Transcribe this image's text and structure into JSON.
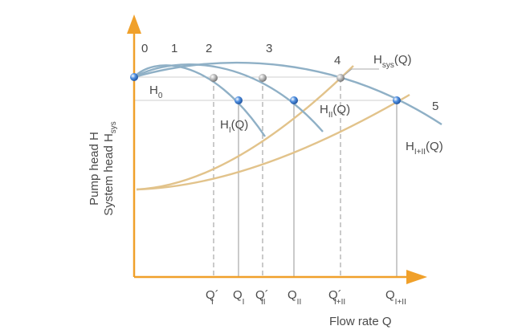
{
  "colors": {
    "axis": "#f0a02a",
    "pump_curve": "#8fb0c6",
    "system_curve": "#e2c38b",
    "guide": "#a8a8a8",
    "text": "#4a4a4a",
    "point_blue": "#2f6fc4",
    "point_gray": "#9a9a9a"
  },
  "axes": {
    "y_label_line1": "Pump head H",
    "y_label_line2": "System head H",
    "y_label_line2_sub": "sys",
    "x_label": "Flow rate Q"
  },
  "curve_labels": {
    "h0": "H",
    "h0_sub": "0",
    "hi": "H",
    "hi_sub": "I",
    "hi_tail": "(Q)",
    "hii": "H",
    "hii_sub": "II",
    "hii_tail": "(Q)",
    "hiii": "H",
    "hiii_sub": "I+II",
    "hiii_tail": "(Q)",
    "hsys": "H",
    "hsys_sub": "sys",
    "hsys_tail": "(Q)"
  },
  "point_numbers": [
    "0",
    "1",
    "2",
    "3",
    "4",
    "5"
  ],
  "x_ticks": [
    {
      "main": "Q´",
      "sub": "I"
    },
    {
      "main": "Q",
      "sub": "I"
    },
    {
      "main": "Q´",
      "sub": "II"
    },
    {
      "main": "Q",
      "sub": "II"
    },
    {
      "main": "Q´",
      "sub": "I+II"
    },
    {
      "main": "Q",
      "sub": "I+II"
    }
  ]
}
